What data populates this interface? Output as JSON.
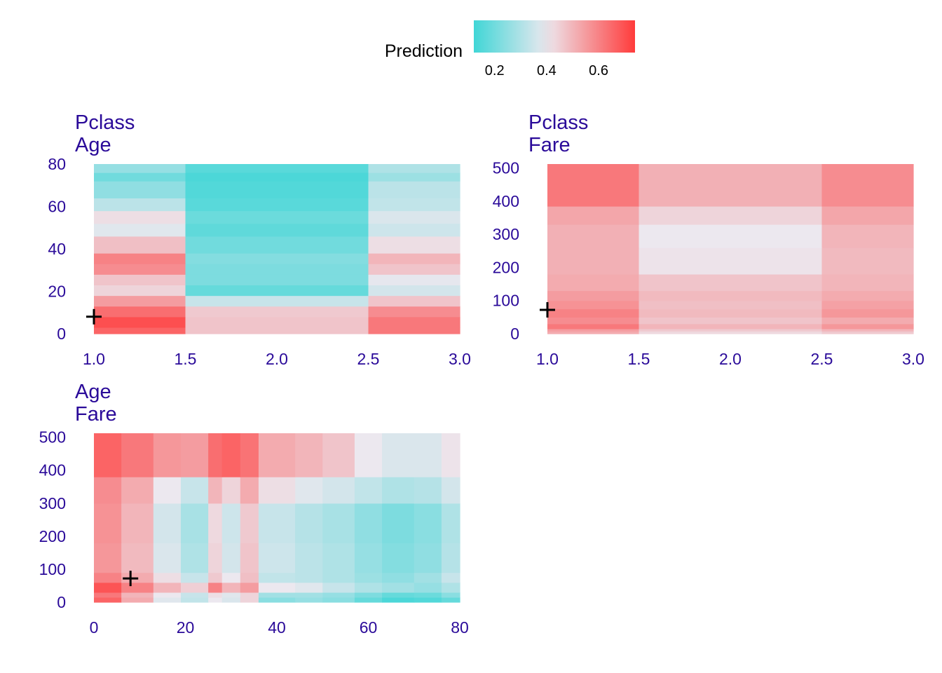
{
  "legend": {
    "title": "Prediction",
    "min": 0.12,
    "max": 0.74,
    "ticks": [
      0.2,
      0.4,
      0.6
    ],
    "tick_labels": [
      "0.2",
      "0.4",
      "0.6"
    ],
    "colors": {
      "low": "#40d6d6",
      "mid": "#ece8ef",
      "high": "#ff3b3b"
    },
    "midpoint": 0.4
  },
  "chart_data": [
    {
      "type": "heatmap",
      "title": [
        "Pclass",
        "Age"
      ],
      "xlim": [
        1,
        3
      ],
      "ylim": [
        0,
        80
      ],
      "xticks": [
        1.0,
        1.5,
        2.0,
        2.5,
        3.0
      ],
      "xtick_labels": [
        "1.0",
        "1.5",
        "2.0",
        "2.5",
        "3.0"
      ],
      "yticks": [
        0,
        20,
        40,
        60,
        80
      ],
      "ytick_labels": [
        "0",
        "20",
        "40",
        "60",
        "80"
      ],
      "x_breaks": [
        1,
        1.5,
        2.5,
        3
      ],
      "y_breaks": [
        0,
        3,
        8,
        13,
        18,
        23,
        28,
        33,
        38,
        46,
        52,
        58,
        64,
        72,
        76,
        80
      ],
      "values": [
        [
          0.66,
          0.47,
          0.62
        ],
        [
          0.7,
          0.47,
          0.62
        ],
        [
          0.64,
          0.46,
          0.58
        ],
        [
          0.55,
          0.34,
          0.47
        ],
        [
          0.44,
          0.18,
          0.36
        ],
        [
          0.47,
          0.22,
          0.39
        ],
        [
          0.58,
          0.22,
          0.47
        ],
        [
          0.6,
          0.23,
          0.5
        ],
        [
          0.48,
          0.2,
          0.42
        ],
        [
          0.38,
          0.17,
          0.35
        ],
        [
          0.42,
          0.19,
          0.37
        ],
        [
          0.32,
          0.16,
          0.33
        ],
        [
          0.25,
          0.15,
          0.32
        ],
        [
          0.2,
          0.14,
          0.27
        ],
        [
          0.26,
          0.16,
          0.3
        ]
      ],
      "marker": {
        "x": 1.0,
        "y": 8
      }
    },
    {
      "type": "heatmap",
      "title": [
        "Pclass",
        "Fare"
      ],
      "xlim": [
        1,
        3
      ],
      "ylim": [
        0,
        512
      ],
      "xticks": [
        1.0,
        1.5,
        2.0,
        2.5,
        3.0
      ],
      "xtick_labels": [
        "1.0",
        "1.5",
        "2.0",
        "2.5",
        "3.0"
      ],
      "yticks": [
        0,
        100,
        200,
        300,
        400,
        500
      ],
      "ytick_labels": [
        "0",
        "100",
        "200",
        "300",
        "400",
        "500"
      ],
      "x_breaks": [
        1,
        1.5,
        2.5,
        3
      ],
      "y_breaks": [
        0,
        8,
        15,
        30,
        50,
        75,
        100,
        130,
        180,
        260,
        330,
        385,
        512
      ],
      "values": [
        [
          0.52,
          0.43,
          0.46
        ],
        [
          0.55,
          0.46,
          0.5
        ],
        [
          0.62,
          0.5,
          0.56
        ],
        [
          0.58,
          0.47,
          0.52
        ],
        [
          0.6,
          0.49,
          0.56
        ],
        [
          0.57,
          0.48,
          0.54
        ],
        [
          0.55,
          0.49,
          0.52
        ],
        [
          0.52,
          0.47,
          0.5
        ],
        [
          0.51,
          0.41,
          0.49
        ],
        [
          0.51,
          0.4,
          0.5
        ],
        [
          0.53,
          0.44,
          0.53
        ],
        [
          0.62,
          0.51,
          0.58
        ]
      ],
      "marker": {
        "x": 1.0,
        "y": 72
      }
    },
    {
      "type": "heatmap",
      "title": [
        "Age",
        "Fare"
      ],
      "xlim": [
        0,
        80
      ],
      "ylim": [
        0,
        512
      ],
      "xticks": [
        0,
        20,
        40,
        60,
        80
      ],
      "xtick_labels": [
        "0",
        "20",
        "40",
        "60",
        "80"
      ],
      "yticks": [
        0,
        100,
        200,
        300,
        400,
        500
      ],
      "ytick_labels": [
        "0",
        "100",
        "200",
        "300",
        "400",
        "500"
      ],
      "x_breaks": [
        0,
        6,
        13,
        19,
        25,
        28,
        32,
        36,
        44,
        50,
        57,
        63,
        70,
        76,
        80
      ],
      "y_breaks": [
        0,
        15,
        30,
        60,
        90,
        180,
        300,
        380,
        512
      ],
      "values": [
        [
          0.66,
          0.52,
          0.38,
          0.33,
          0.4,
          0.37,
          0.44,
          0.24,
          0.26,
          0.24,
          0.18,
          0.14,
          0.15,
          0.18
        ],
        [
          0.62,
          0.5,
          0.4,
          0.34,
          0.42,
          0.38,
          0.44,
          0.28,
          0.28,
          0.26,
          0.22,
          0.18,
          0.19,
          0.24
        ],
        [
          0.69,
          0.6,
          0.5,
          0.45,
          0.6,
          0.5,
          0.55,
          0.4,
          0.38,
          0.34,
          0.3,
          0.28,
          0.26,
          0.3
        ],
        [
          0.6,
          0.52,
          0.42,
          0.34,
          0.46,
          0.4,
          0.48,
          0.33,
          0.32,
          0.3,
          0.27,
          0.25,
          0.28,
          0.34
        ],
        [
          0.56,
          0.49,
          0.37,
          0.3,
          0.44,
          0.36,
          0.47,
          0.35,
          0.32,
          0.3,
          0.26,
          0.23,
          0.25,
          0.31
        ],
        [
          0.57,
          0.5,
          0.36,
          0.29,
          0.43,
          0.35,
          0.46,
          0.34,
          0.31,
          0.29,
          0.25,
          0.22,
          0.24,
          0.3
        ],
        [
          0.58,
          0.52,
          0.4,
          0.34,
          0.5,
          0.44,
          0.52,
          0.42,
          0.38,
          0.36,
          0.33,
          0.3,
          0.31,
          0.36
        ],
        [
          0.66,
          0.62,
          0.56,
          0.55,
          0.64,
          0.66,
          0.63,
          0.52,
          0.5,
          0.47,
          0.4,
          0.37,
          0.37,
          0.41
        ]
      ],
      "marker": {
        "x": 8,
        "y": 72
      }
    }
  ]
}
